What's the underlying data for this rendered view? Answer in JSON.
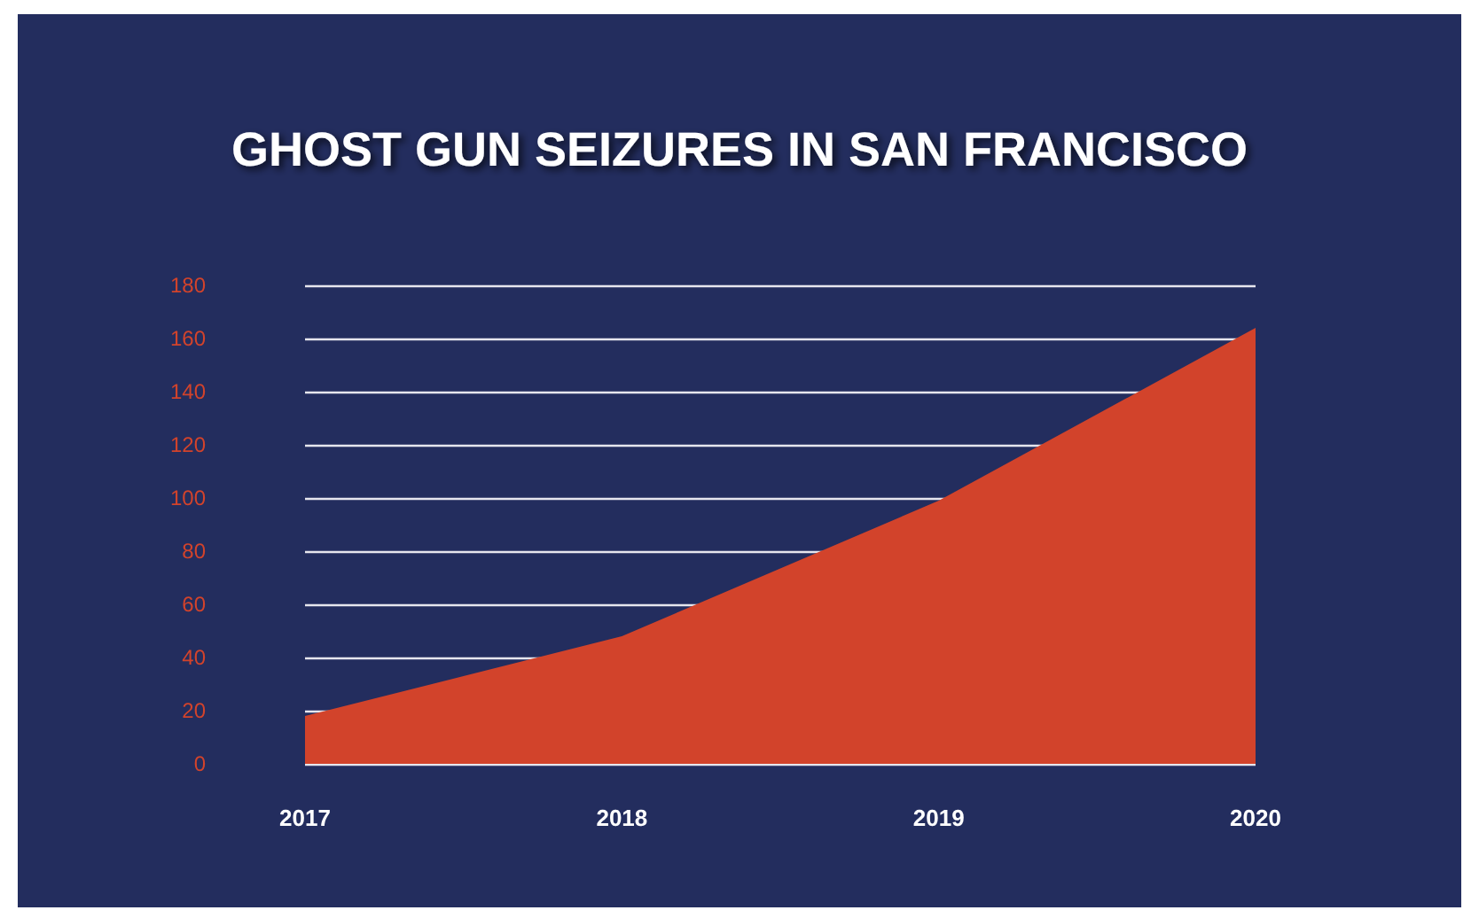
{
  "chart_data": {
    "type": "area",
    "title": "GHOST GUN SEIZURES IN SAN FRANCISCO",
    "categories": [
      "2017",
      "2018",
      "2019",
      "2020"
    ],
    "values": [
      18,
      48,
      99,
      164
    ],
    "color": "#d2432b",
    "ylim": [
      0,
      180
    ],
    "yticks": [
      0,
      20,
      40,
      60,
      80,
      100,
      120,
      140,
      160,
      180
    ],
    "grid": "y",
    "marker": "none"
  }
}
